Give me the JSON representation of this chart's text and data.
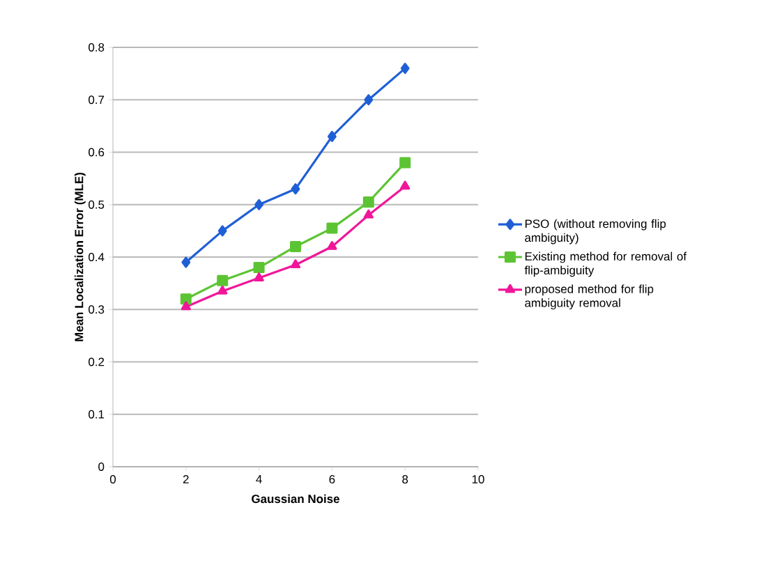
{
  "chart_data": {
    "type": "line",
    "xlabel": "Gaussian Noise",
    "ylabel": "Mean Localization Error (MLE)",
    "x": [
      2,
      3,
      4,
      5,
      6,
      7,
      8
    ],
    "series": [
      {
        "name": "PSO (without removing flip ambiguity)",
        "color": "#1f5fd6",
        "marker": "diamond",
        "values": [
          0.39,
          0.45,
          0.5,
          0.53,
          0.63,
          0.7,
          0.76
        ]
      },
      {
        "name": "Existing method for removal of flip-ambiguity",
        "color": "#5cc433",
        "marker": "square",
        "values": [
          0.32,
          0.355,
          0.38,
          0.42,
          0.455,
          0.505,
          0.58
        ]
      },
      {
        "name": "proposed method for flip ambiguity removal",
        "color": "#f0169a",
        "marker": "triangle",
        "values": [
          0.305,
          0.335,
          0.36,
          0.385,
          0.42,
          0.48,
          0.535
        ]
      }
    ],
    "xlim": [
      0,
      10
    ],
    "xticks": [
      0,
      2,
      4,
      6,
      8,
      10
    ],
    "ylim": [
      0,
      0.8
    ],
    "yticks": [
      0,
      0.1,
      0.2,
      0.3,
      0.4,
      0.5,
      0.6,
      0.7,
      0.8
    ],
    "grid": "y",
    "legend": "right",
    "line_style": "solid"
  }
}
